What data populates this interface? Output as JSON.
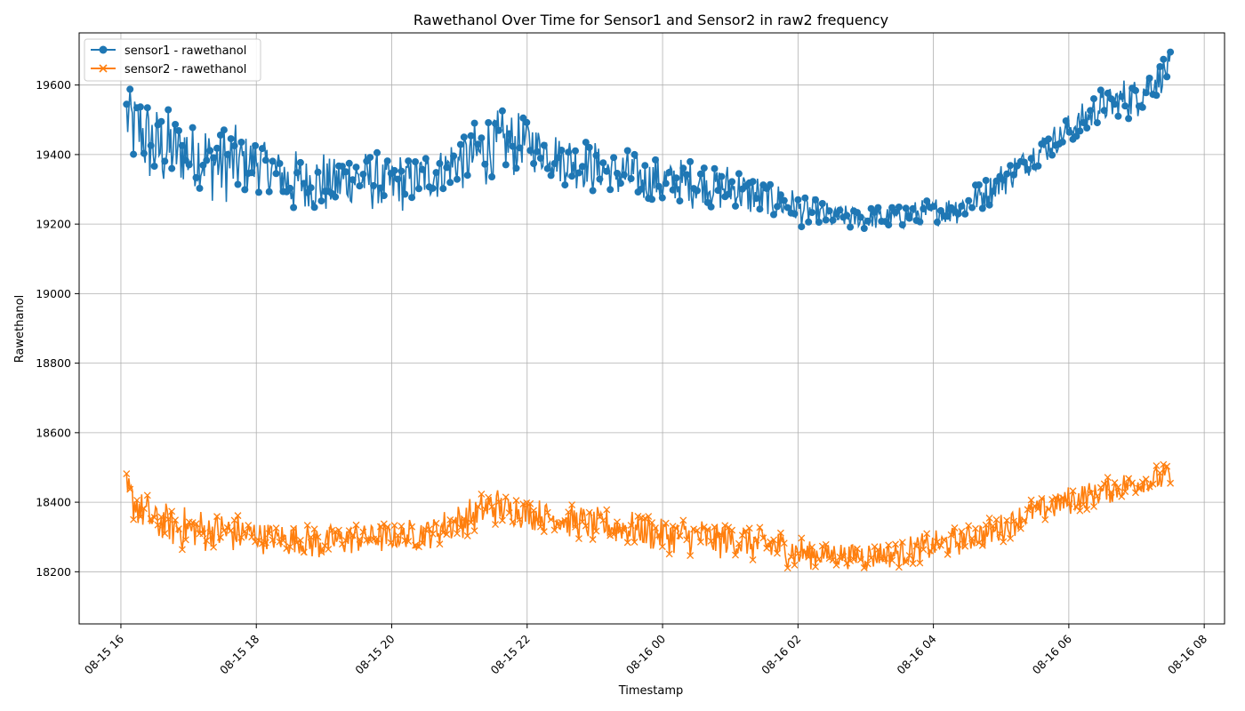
{
  "chart_data": {
    "type": "line",
    "title": "Rawethanol Over Time for Sensor1 and Sensor2 in raw2 frequency",
    "xlabel": "Timestamp",
    "ylabel": "Rawethanol",
    "grid": true,
    "legend_position": "top-left",
    "xlim": [
      "2023-08-15 15:23",
      "2023-08-16 08:18"
    ],
    "ylim": [
      18050,
      19750
    ],
    "x_ticks": [
      "2023-08-15 16:00",
      "2023-08-15 18:00",
      "2023-08-15 20:00",
      "2023-08-15 22:00",
      "2023-08-16 00:00",
      "2023-08-16 02:00",
      "2023-08-16 04:00",
      "2023-08-16 06:00",
      "2023-08-16 08:00"
    ],
    "x_tick_labels": [
      "08-15 16",
      "08-15 18",
      "08-15 20",
      "08-15 22",
      "08-16 00",
      "08-16 02",
      "08-16 04",
      "08-16 06",
      "08-16 08"
    ],
    "y_ticks": [
      18200,
      18400,
      18600,
      18800,
      19000,
      19200,
      19400,
      19600
    ],
    "series": [
      {
        "name": "sensor1 - rawethanol",
        "color": "#1f77b4",
        "marker": "circle",
        "x": [
          "2023-08-15 16:05",
          "2023-08-15 16:30",
          "2023-08-15 17:00",
          "2023-08-15 17:30",
          "2023-08-15 18:00",
          "2023-08-15 18:30",
          "2023-08-15 19:00",
          "2023-08-15 19:30",
          "2023-08-15 20:00",
          "2023-08-15 20:30",
          "2023-08-15 21:00",
          "2023-08-15 21:30",
          "2023-08-15 22:00",
          "2023-08-15 22:30",
          "2023-08-15 23:00",
          "2023-08-15 23:30",
          "2023-08-16 00:00",
          "2023-08-16 00:30",
          "2023-08-16 01:00",
          "2023-08-16 01:30",
          "2023-08-16 02:00",
          "2023-08-16 02:30",
          "2023-08-16 03:00",
          "2023-08-16 03:30",
          "2023-08-16 04:00",
          "2023-08-16 04:30",
          "2023-08-16 05:00",
          "2023-08-16 05:30",
          "2023-08-16 06:00",
          "2023-08-16 06:30",
          "2023-08-16 07:00",
          "2023-08-16 07:30"
        ],
        "y_low": [
          19370,
          19290,
          19270,
          19250,
          19290,
          19220,
          19220,
          19240,
          19220,
          19250,
          19290,
          19300,
          19350,
          19310,
          19280,
          19260,
          19240,
          19240,
          19230,
          19210,
          19190,
          19180,
          19180,
          19180,
          19190,
          19200,
          19270,
          19350,
          19420,
          19480,
          19500,
          19600
        ],
        "y_high": [
          19640,
          19550,
          19530,
          19500,
          19480,
          19420,
          19420,
          19420,
          19410,
          19420,
          19470,
          19540,
          19520,
          19470,
          19450,
          19420,
          19400,
          19390,
          19380,
          19340,
          19300,
          19260,
          19250,
          19260,
          19280,
          19310,
          19380,
          19450,
          19520,
          19600,
          19640,
          19700
        ]
      },
      {
        "name": "sensor2 - rawethanol",
        "color": "#ff7f0e",
        "marker": "x",
        "x": [
          "2023-08-15 16:05",
          "2023-08-15 16:30",
          "2023-08-15 17:00",
          "2023-08-15 17:30",
          "2023-08-15 18:00",
          "2023-08-15 18:30",
          "2023-08-15 19:00",
          "2023-08-15 19:30",
          "2023-08-15 20:00",
          "2023-08-15 20:30",
          "2023-08-15 21:00",
          "2023-08-15 21:30",
          "2023-08-15 22:00",
          "2023-08-15 22:30",
          "2023-08-15 23:00",
          "2023-08-15 23:30",
          "2023-08-16 00:00",
          "2023-08-16 00:30",
          "2023-08-16 01:00",
          "2023-08-16 01:30",
          "2023-08-16 02:00",
          "2023-08-16 02:30",
          "2023-08-16 03:00",
          "2023-08-16 03:30",
          "2023-08-16 04:00",
          "2023-08-16 04:30",
          "2023-08-16 05:00",
          "2023-08-16 05:30",
          "2023-08-16 06:00",
          "2023-08-16 06:30",
          "2023-08-16 07:00",
          "2023-08-16 07:30"
        ],
        "y_low": [
          18360,
          18280,
          18250,
          18250,
          18250,
          18240,
          18230,
          18250,
          18250,
          18260,
          18290,
          18330,
          18320,
          18300,
          18280,
          18270,
          18250,
          18240,
          18230,
          18220,
          18200,
          18210,
          18200,
          18210,
          18230,
          18250,
          18280,
          18330,
          18360,
          18390,
          18410,
          18430
        ],
        "y_high": [
          18490,
          18410,
          18390,
          18380,
          18360,
          18340,
          18340,
          18350,
          18350,
          18360,
          18400,
          18450,
          18420,
          18400,
          18390,
          18380,
          18370,
          18360,
          18350,
          18340,
          18310,
          18290,
          18290,
          18300,
          18320,
          18340,
          18370,
          18420,
          18450,
          18470,
          18500,
          18520
        ]
      }
    ]
  }
}
